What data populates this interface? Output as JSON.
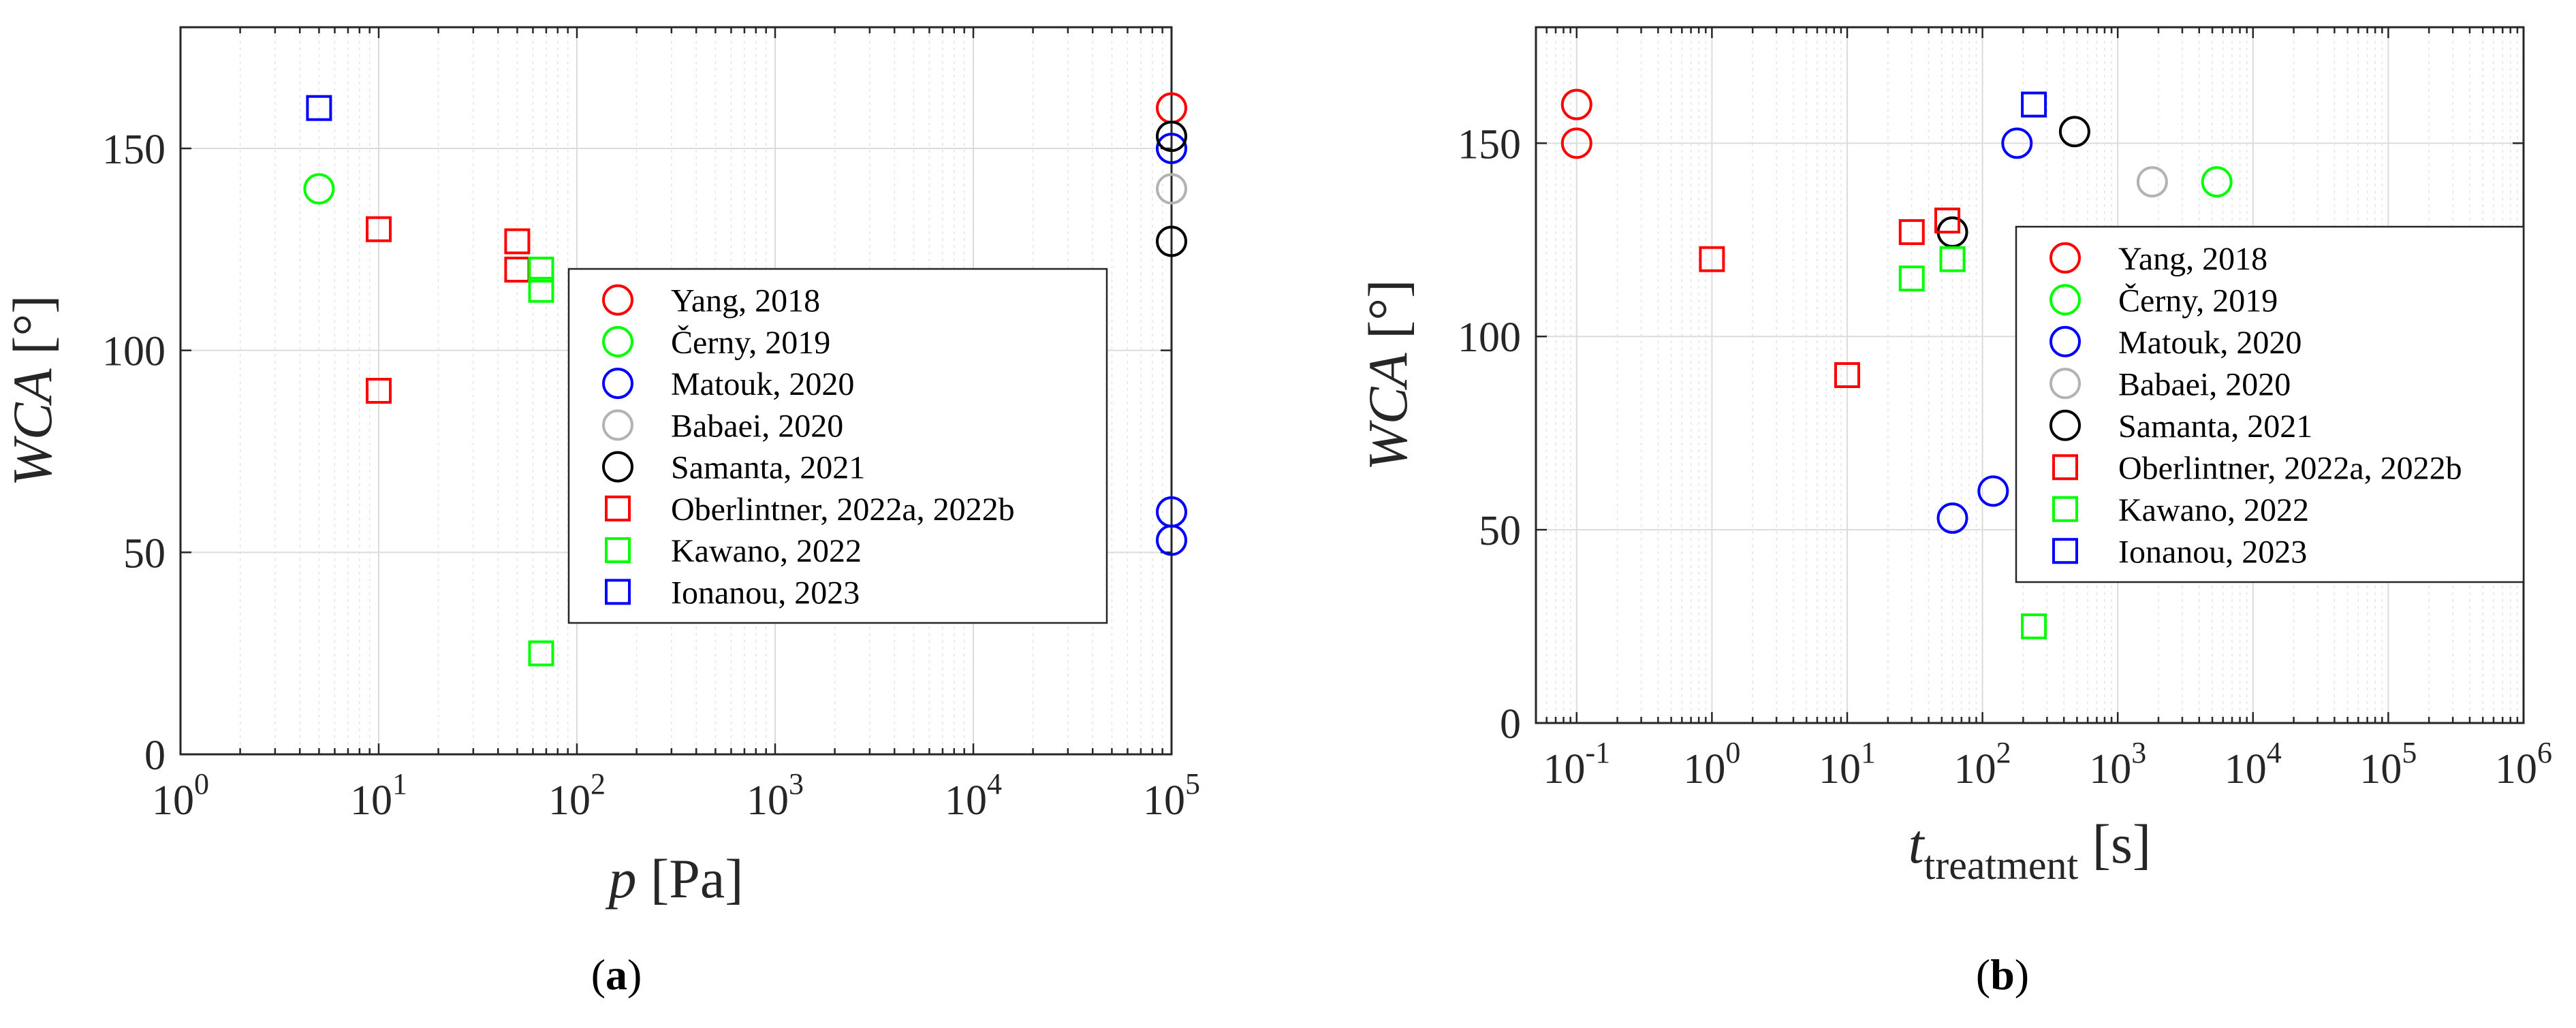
{
  "panels": [
    {
      "caption_open": "(",
      "caption_letter": "a",
      "caption_close": ")"
    },
    {
      "caption_open": "(",
      "caption_letter": "b",
      "caption_close": ")"
    }
  ],
  "chart_data": [
    {
      "type": "scatter",
      "xscale": "log",
      "xlim": [
        1,
        100000
      ],
      "ylim": [
        0,
        180
      ],
      "x_ticks": [
        {
          "base": "10",
          "exp": "0"
        },
        {
          "base": "10",
          "exp": "1"
        },
        {
          "base": "10",
          "exp": "2"
        },
        {
          "base": "10",
          "exp": "3"
        },
        {
          "base": "10",
          "exp": "4"
        },
        {
          "base": "10",
          "exp": "5"
        }
      ],
      "y_ticks": [
        "0",
        "50",
        "100",
        "150"
      ],
      "xlabel": {
        "italic": "p",
        "rest": " [Pa]"
      },
      "ylabel": {
        "italic": "WCA",
        "rest": " [°]"
      },
      "grid": true,
      "legend_position": "center-right",
      "series": [
        {
          "name": "Yang, 2018",
          "marker": "circle",
          "color": "#ff0000",
          "points": [
            {
              "x": 100000,
              "y": 160
            }
          ]
        },
        {
          "name": "Černy, 2019",
          "marker": "circle",
          "color": "#00ff00",
          "points": [
            {
              "x": 5,
              "y": 140
            }
          ]
        },
        {
          "name": "Matouk, 2020",
          "marker": "circle",
          "color": "#0000ff",
          "points": [
            {
              "x": 100000,
              "y": 150
            },
            {
              "x": 100000,
              "y": 60
            },
            {
              "x": 100000,
              "y": 53
            }
          ]
        },
        {
          "name": "Babaei, 2020",
          "marker": "circle",
          "color": "#b3b3b3",
          "points": [
            {
              "x": 100000,
              "y": 140
            }
          ]
        },
        {
          "name": "Samanta, 2021",
          "marker": "circle",
          "color": "#000000",
          "points": [
            {
              "x": 100000,
              "y": 153
            },
            {
              "x": 100000,
              "y": 127
            }
          ]
        },
        {
          "name": "Oberlintner, 2022a, 2022b",
          "marker": "square",
          "color": "#ff0000",
          "points": [
            {
              "x": 10,
              "y": 130
            },
            {
              "x": 10,
              "y": 90
            },
            {
              "x": 50,
              "y": 127
            },
            {
              "x": 50,
              "y": 120
            }
          ]
        },
        {
          "name": "Kawano, 2022",
          "marker": "square",
          "color": "#00ff00",
          "points": [
            {
              "x": 66,
              "y": 120
            },
            {
              "x": 66,
              "y": 115
            },
            {
              "x": 66,
              "y": 25
            }
          ]
        },
        {
          "name": "Ionanou, 2023",
          "marker": "square",
          "color": "#0000ff",
          "points": [
            {
              "x": 5,
              "y": 160
            }
          ]
        }
      ]
    },
    {
      "type": "scatter",
      "xscale": "log",
      "xlim": [
        0.05,
        1000000
      ],
      "ylim": [
        0,
        180
      ],
      "x_ticks": [
        {
          "base": "10",
          "exp": "-1"
        },
        {
          "base": "10",
          "exp": "0"
        },
        {
          "base": "10",
          "exp": "1"
        },
        {
          "base": "10",
          "exp": "2"
        },
        {
          "base": "10",
          "exp": "3"
        },
        {
          "base": "10",
          "exp": "4"
        },
        {
          "base": "10",
          "exp": "5"
        },
        {
          "base": "10",
          "exp": "6"
        }
      ],
      "y_ticks": [
        "0",
        "50",
        "100",
        "150"
      ],
      "xlabel": {
        "italic": "t",
        "sub": "treatment",
        "rest": " [s]"
      },
      "ylabel": {
        "italic": "WCA",
        "rest": " [°]"
      },
      "grid": true,
      "legend_position": "top-right",
      "series": [
        {
          "name": "Yang, 2018",
          "marker": "circle",
          "color": "#ff0000",
          "points": [
            {
              "x": 0.1,
              "y": 160
            },
            {
              "x": 0.1,
              "y": 150
            }
          ]
        },
        {
          "name": "Černy, 2019",
          "marker": "circle",
          "color": "#00ff00",
          "points": [
            {
              "x": 5400,
              "y": 140
            }
          ]
        },
        {
          "name": "Matouk, 2020",
          "marker": "circle",
          "color": "#0000ff",
          "points": [
            {
              "x": 180,
              "y": 150
            },
            {
              "x": 120,
              "y": 60
            },
            {
              "x": 60,
              "y": 53
            }
          ]
        },
        {
          "name": "Babaei, 2020",
          "marker": "circle",
          "color": "#b3b3b3",
          "points": [
            {
              "x": 1800,
              "y": 140
            }
          ]
        },
        {
          "name": "Samanta, 2021",
          "marker": "circle",
          "color": "#000000",
          "points": [
            {
              "x": 480,
              "y": 153
            },
            {
              "x": 60,
              "y": 127
            }
          ]
        },
        {
          "name": "Oberlintner, 2022a, 2022b",
          "marker": "square",
          "color": "#ff0000",
          "points": [
            {
              "x": 1,
              "y": 120
            },
            {
              "x": 10,
              "y": 90
            },
            {
              "x": 30,
              "y": 127
            },
            {
              "x": 55,
              "y": 130
            }
          ]
        },
        {
          "name": "Kawano, 2022",
          "marker": "square",
          "color": "#00ff00",
          "points": [
            {
              "x": 30,
              "y": 115
            },
            {
              "x": 60,
              "y": 120
            },
            {
              "x": 240,
              "y": 25
            }
          ]
        },
        {
          "name": "Ionanou, 2023",
          "marker": "square",
          "color": "#0000ff",
          "points": [
            {
              "x": 240,
              "y": 160
            }
          ]
        }
      ]
    }
  ]
}
